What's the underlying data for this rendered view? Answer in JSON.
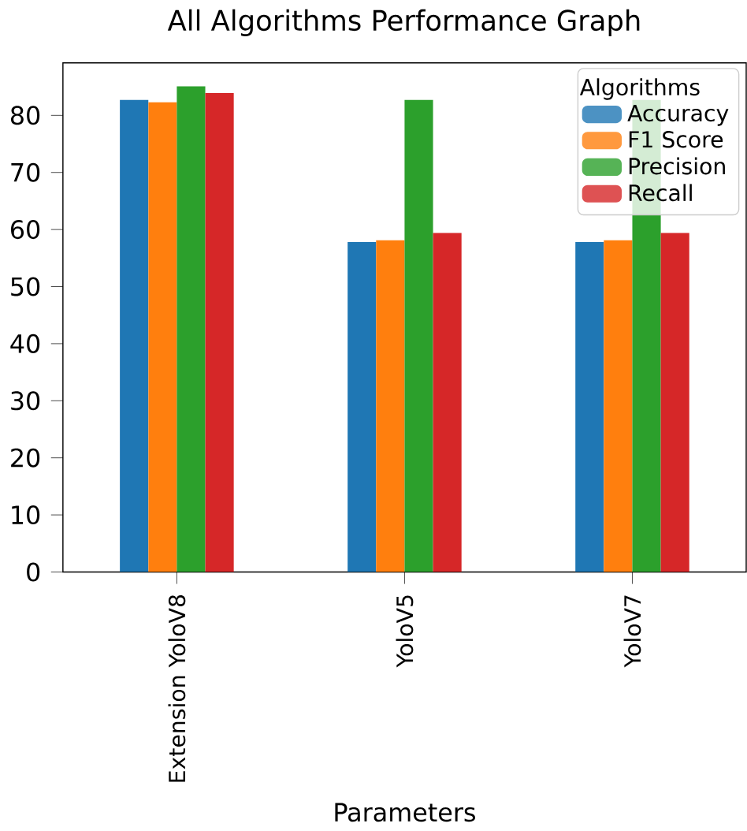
{
  "chart_data": {
    "type": "bar",
    "title": "All Algorithms Performance Graph",
    "xlabel": "Parameters",
    "legend_title": "Algorithms",
    "categories": [
      "Extension YoloV8",
      "YoloV5",
      "YoloV7"
    ],
    "series": [
      {
        "name": "Accuracy",
        "color": "#1f77b4",
        "values": [
          82.7,
          57.8,
          57.8
        ]
      },
      {
        "name": "F1 Score",
        "color": "#ff7f0e",
        "values": [
          82.3,
          58.1,
          58.1
        ]
      },
      {
        "name": "Precision",
        "color": "#2ca02c",
        "values": [
          85.1,
          82.7,
          82.7
        ]
      },
      {
        "name": "Recall",
        "color": "#d62728",
        "values": [
          83.9,
          59.4,
          59.4
        ]
      }
    ],
    "ylim": [
      0,
      89.2
    ],
    "yticks": [
      0,
      10,
      20,
      30,
      40,
      50,
      60,
      70,
      80
    ],
    "grid": false,
    "legend": "top right"
  }
}
